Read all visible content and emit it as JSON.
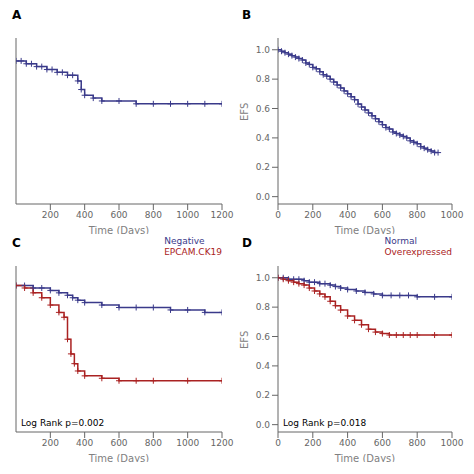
{
  "chart_data": [
    {
      "type": "step",
      "title": "A",
      "xlabel": "Time (Days)",
      "xlim": [
        0,
        1200
      ],
      "ylim": [
        0.5,
        1.08
      ],
      "xticks": [
        200,
        400,
        600,
        800,
        1000,
        1200
      ],
      "tick_labels": "x",
      "grid": false,
      "series": [
        {
          "color": "#3a3a8a",
          "marker": "plus",
          "x": [
            0,
            30,
            60,
            90,
            120,
            150,
            180,
            210,
            240,
            270,
            300,
            330,
            360,
            380,
            400,
            450,
            500,
            600,
            700,
            800,
            900,
            1000,
            1100,
            1200
          ],
          "values": [
            1.0,
            1.0,
            0.99,
            0.99,
            0.98,
            0.98,
            0.97,
            0.97,
            0.96,
            0.96,
            0.95,
            0.95,
            0.93,
            0.9,
            0.88,
            0.87,
            0.86,
            0.86,
            0.85,
            0.85,
            0.85,
            0.85,
            0.85,
            0.85
          ]
        }
      ]
    },
    {
      "type": "step",
      "title": "B",
      "xlabel": "Time (Days)",
      "ylabel": "EFS",
      "xlim": [
        0,
        1000
      ],
      "ylim": [
        -0.05,
        1.08
      ],
      "xticks": [
        0,
        200,
        400,
        600,
        800,
        1000
      ],
      "yticks": [
        {
          "value": 0.0,
          "label": "0.0"
        },
        0.2,
        0.4,
        0.6,
        0.8,
        {
          "value": 1.0,
          "label": "1.0"
        }
      ],
      "grid": false,
      "series": [
        {
          "color": "#3a3a8a",
          "marker": "plus",
          "x": [
            0,
            20,
            40,
            60,
            80,
            100,
            120,
            140,
            160,
            180,
            200,
            220,
            240,
            260,
            280,
            300,
            320,
            340,
            360,
            380,
            400,
            420,
            440,
            460,
            480,
            500,
            520,
            540,
            560,
            580,
            600,
            620,
            640,
            660,
            680,
            700,
            720,
            740,
            760,
            780,
            800,
            820,
            840,
            860,
            880,
            900,
            920
          ],
          "values": [
            1.0,
            0.99,
            0.98,
            0.97,
            0.96,
            0.95,
            0.94,
            0.93,
            0.91,
            0.9,
            0.88,
            0.87,
            0.85,
            0.83,
            0.82,
            0.8,
            0.78,
            0.76,
            0.74,
            0.72,
            0.7,
            0.68,
            0.66,
            0.63,
            0.61,
            0.59,
            0.57,
            0.55,
            0.53,
            0.51,
            0.49,
            0.47,
            0.46,
            0.44,
            0.43,
            0.42,
            0.41,
            0.4,
            0.38,
            0.37,
            0.36,
            0.34,
            0.33,
            0.32,
            0.31,
            0.3,
            0.3
          ]
        }
      ]
    },
    {
      "type": "step",
      "title": "C",
      "xlabel": "Time (Days)",
      "xlim": [
        0,
        1200
      ],
      "ylim": [
        0.4,
        1.08
      ],
      "xticks": [
        200,
        400,
        600,
        800,
        1000,
        1200
      ],
      "tick_labels": "x",
      "grid": false,
      "legend": "upper right",
      "annotations": [
        "Log Rank p=0.002"
      ],
      "series": [
        {
          "name": "Negative",
          "color": "#3a3a8a",
          "marker": "plus",
          "x": [
            0,
            50,
            100,
            150,
            200,
            250,
            300,
            330,
            360,
            400,
            500,
            600,
            700,
            800,
            900,
            1000,
            1100,
            1200
          ],
          "values": [
            1.0,
            1.0,
            0.99,
            0.99,
            0.98,
            0.97,
            0.96,
            0.95,
            0.94,
            0.93,
            0.92,
            0.91,
            0.91,
            0.91,
            0.9,
            0.9,
            0.89,
            0.89
          ]
        },
        {
          "name": "EPCAM.CK19",
          "color": "#aa2222",
          "marker": "plus",
          "x": [
            0,
            50,
            100,
            150,
            200,
            250,
            280,
            300,
            320,
            340,
            360,
            400,
            500,
            600,
            700,
            800,
            1000,
            1200
          ],
          "values": [
            1.0,
            0.99,
            0.97,
            0.95,
            0.92,
            0.89,
            0.87,
            0.78,
            0.72,
            0.68,
            0.65,
            0.63,
            0.62,
            0.61,
            0.61,
            0.61,
            0.61,
            0.61
          ]
        }
      ]
    },
    {
      "type": "step",
      "title": "D",
      "xlabel": "Time (Days)",
      "ylabel": "EFS",
      "xlim": [
        0,
        1000
      ],
      "ylim": [
        -0.05,
        1.08
      ],
      "xticks": [
        0,
        200,
        400,
        600,
        800,
        1000
      ],
      "yticks": [
        {
          "value": 0.0,
          "label": "0.0"
        },
        0.2,
        0.4,
        0.6,
        0.8,
        {
          "value": 1.0,
          "label": "1.0"
        }
      ],
      "grid": false,
      "legend": "upper right",
      "annotations": [
        "Log Rank p=0.018"
      ],
      "series": [
        {
          "name": "Normal",
          "color": "#3a3a8a",
          "marker": "plus",
          "x": [
            0,
            30,
            60,
            90,
            120,
            150,
            180,
            210,
            240,
            270,
            300,
            330,
            360,
            400,
            450,
            500,
            550,
            600,
            650,
            700,
            750,
            800,
            900,
            1000
          ],
          "values": [
            1.0,
            1.0,
            0.99,
            0.99,
            0.99,
            0.98,
            0.97,
            0.97,
            0.96,
            0.96,
            0.95,
            0.94,
            0.93,
            0.92,
            0.91,
            0.9,
            0.89,
            0.88,
            0.88,
            0.88,
            0.88,
            0.87,
            0.87,
            0.87
          ]
        },
        {
          "name": "Overexpressed",
          "color": "#aa2222",
          "marker": "plus",
          "x": [
            0,
            30,
            60,
            90,
            120,
            150,
            180,
            210,
            240,
            270,
            300,
            330,
            360,
            400,
            440,
            480,
            520,
            560,
            600,
            640,
            680,
            720,
            760,
            800,
            900,
            1000
          ],
          "values": [
            1.0,
            0.99,
            0.98,
            0.97,
            0.96,
            0.95,
            0.93,
            0.91,
            0.89,
            0.87,
            0.84,
            0.81,
            0.78,
            0.74,
            0.71,
            0.68,
            0.65,
            0.63,
            0.62,
            0.61,
            0.61,
            0.61,
            0.61,
            0.61,
            0.61,
            0.61
          ]
        }
      ]
    }
  ]
}
